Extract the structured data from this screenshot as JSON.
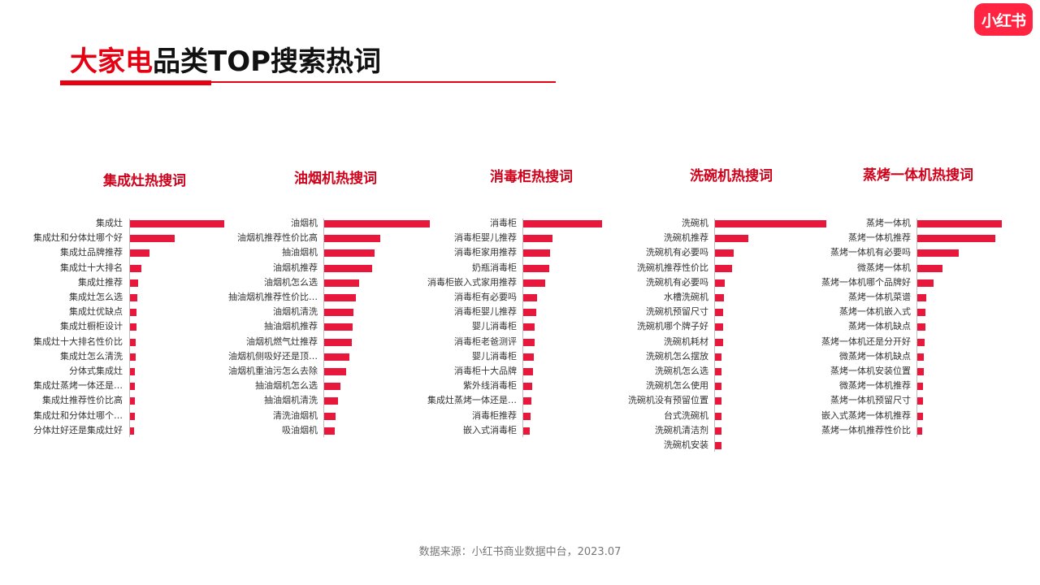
{
  "brand": {
    "logo_text": "小红书",
    "accent_color": "#ff2442"
  },
  "title": {
    "highlight": "大家电",
    "rest": "品类TOP搜索热词"
  },
  "footer": "数据来源：小红书商业数据中台，2023.07",
  "chart_data": [
    {
      "type": "bar",
      "title": "集成灶热搜词",
      "categories": [
        "集成灶",
        "集成灶和分体灶哪个好",
        "集成灶品牌推荐",
        "集成灶十大排名",
        "集成灶推荐",
        "集成灶怎么选",
        "集成灶优缺点",
        "集成灶橱柜设计",
        "集成灶十大排名性价比",
        "集成灶怎么清洗",
        "分体式集成灶",
        "集成灶蒸烤一体还是…",
        "集成灶推荐性价比高",
        "集成灶和分体灶哪个…",
        "分体灶好还是集成灶好"
      ],
      "values": [
        100,
        47,
        21,
        12,
        9,
        8,
        7,
        7,
        6,
        6,
        5,
        5,
        5,
        5,
        4
      ],
      "xlim": [
        0,
        100
      ]
    },
    {
      "type": "bar",
      "title": "油烟机热搜词",
      "categories": [
        "油烟机",
        "油烟机推荐性价比高",
        "抽油烟机",
        "油烟机推荐",
        "油烟机怎么选",
        "抽油烟机推荐性价比…",
        "油烟机清洗",
        "抽油烟机推荐",
        "油烟机燃气灶推荐",
        "油烟机侧吸好还是顶…",
        "油烟机重油污怎么去除",
        "抽油烟机怎么选",
        "抽油烟机清洗",
        "清洗油烟机",
        "吸油烟机"
      ],
      "values": [
        100,
        53,
        48,
        45,
        33,
        30,
        28,
        27,
        26,
        24,
        21,
        15,
        13,
        11,
        10
      ],
      "xlim": [
        0,
        100
      ]
    },
    {
      "type": "bar",
      "title": "消毒柜热搜词",
      "categories": [
        "消毒柜",
        "消毒柜婴儿推荐",
        "消毒柜家用推荐",
        "奶瓶消毒柜",
        "消毒柜嵌入式家用推荐",
        "消毒柜有必要吗",
        "消毒柜婴儿推荐",
        "婴儿消毒柜",
        "消毒柜老爸测评",
        "婴儿消毒柜",
        "消毒柜十大品牌",
        "紫外线消毒柜",
        "集成灶蒸烤一体还是…",
        "消毒柜推荐",
        "嵌入式消毒柜"
      ],
      "values": [
        100,
        37,
        34,
        33,
        28,
        18,
        16,
        14,
        14,
        13,
        12,
        11,
        10,
        9,
        8
      ],
      "xlim": [
        0,
        100
      ]
    },
    {
      "type": "bar",
      "title": "洗碗机热搜词",
      "categories": [
        "洗碗机",
        "洗碗机推荐",
        "洗碗机有必要吗",
        "洗碗机推荐性价比",
        "洗碗机有必要吗",
        "水槽洗碗机",
        "洗碗机预留尺寸",
        "洗碗机哪个牌子好",
        "洗碗机耗材",
        "洗碗机怎么摆放",
        "洗碗机怎么选",
        "洗碗机怎么使用",
        "洗碗机没有预留位置",
        "台式洗碗机",
        "洗碗机清洁剂",
        "洗碗机安装"
      ],
      "values": [
        100,
        30,
        17,
        15,
        9,
        8,
        7,
        7,
        7,
        6,
        6,
        6,
        6,
        6,
        6,
        6
      ],
      "xlim": [
        0,
        100
      ]
    },
    {
      "type": "bar",
      "title": "蒸烤一体机热搜词",
      "categories": [
        "蒸烤一体机",
        "蒸烤一体机推荐",
        "蒸烤一体机有必要吗",
        "微蒸烤一体机",
        "蒸烤一体机哪个品牌好",
        "蒸烤一体机菜谱",
        "蒸烤一体机嵌入式",
        "蒸烤一体机缺点",
        "蒸烤一体机还是分开好",
        "微蒸烤一体机缺点",
        "蒸烤一体机安装位置",
        "微蒸烤一体机推荐",
        "蒸烤一体机预留尺寸",
        "嵌入式蒸烤一体机推荐",
        "蒸烤一体机推荐性价比"
      ],
      "values": [
        100,
        92,
        49,
        30,
        19,
        11,
        10,
        10,
        9,
        8,
        8,
        7,
        7,
        7,
        6
      ],
      "xlim": [
        0,
        100
      ]
    }
  ]
}
